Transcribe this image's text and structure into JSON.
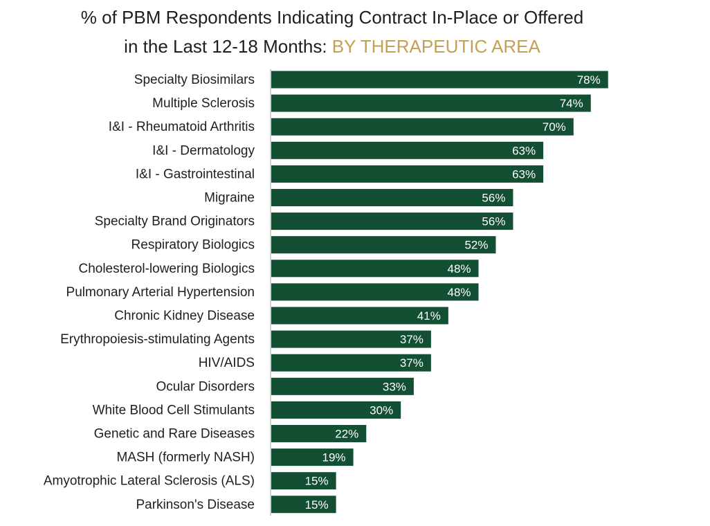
{
  "title": {
    "line1": "% of PBM Respondents Indicating Contract In-Place or Offered",
    "line2_prefix": "in the Last 12-18 Months: ",
    "line2_accent": "BY THERAPEUTIC AREA"
  },
  "colors": {
    "bar": "#134f33",
    "accent": "#c4a055",
    "axis": "#bfbfbf"
  },
  "chart_data": {
    "type": "bar",
    "orientation": "horizontal",
    "categories": [
      "Specialty Biosimilars",
      "Multiple Sclerosis",
      "I&I - Rheumatoid Arthritis",
      "I&I - Dermatology",
      "I&I - Gastrointestinal",
      "Migraine",
      "Specialty Brand Originators",
      "Respiratory Biologics",
      "Cholesterol-lowering Biologics",
      "Pulmonary Arterial Hypertension",
      "Chronic Kidney Disease",
      "Erythropoiesis-stimulating Agents",
      "HIV/AIDS",
      "Ocular Disorders",
      "White Blood Cell Stimulants",
      "Genetic and Rare Diseases",
      "MASH (formerly NASH)",
      "Amyotrophic Lateral Sclerosis (ALS)",
      "Parkinson's Disease"
    ],
    "values": [
      78,
      74,
      70,
      63,
      63,
      56,
      56,
      52,
      48,
      48,
      41,
      37,
      37,
      33,
      30,
      22,
      19,
      15,
      15
    ],
    "value_labels": [
      "78%",
      "74%",
      "70%",
      "63%",
      "63%",
      "56%",
      "56%",
      "52%",
      "48%",
      "48%",
      "41%",
      "37%",
      "37%",
      "33%",
      "30%",
      "22%",
      "19%",
      "15%",
      "15%"
    ],
    "unit": "%",
    "grid": false,
    "legend": "none"
  }
}
